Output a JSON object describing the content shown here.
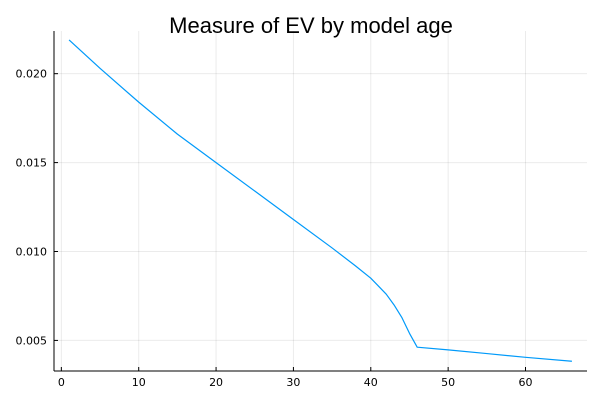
{
  "chart_data": {
    "type": "line",
    "title": "Measure of EV by model age",
    "xlabel": "",
    "ylabel": "",
    "xlim": [
      -0.95,
      67.95
    ],
    "ylim": [
      0.00328,
      0.0224
    ],
    "xticks": [
      0,
      10,
      20,
      30,
      40,
      50,
      60
    ],
    "yticks": [
      0.005,
      0.01,
      0.015,
      0.02
    ],
    "xtick_labels": [
      "0",
      "10",
      "20",
      "30",
      "40",
      "50",
      "60"
    ],
    "ytick_labels": [
      "0.005",
      "0.010",
      "0.015",
      "0.020"
    ],
    "grid": true,
    "legend": "none",
    "series": [
      {
        "color": "#009AFA",
        "x": [
          1,
          5,
          10,
          15,
          20,
          25,
          30,
          35,
          38,
          40,
          42,
          43,
          44,
          45,
          46,
          50,
          55,
          60,
          66
        ],
        "y": [
          0.0219,
          0.0203,
          0.0184,
          0.0166,
          0.015,
          0.0134,
          0.0118,
          0.0102,
          0.0092,
          0.0085,
          0.0076,
          0.007,
          0.0063,
          0.0054,
          0.00462,
          0.00447,
          0.00426,
          0.00405,
          0.00383
        ]
      }
    ]
  }
}
